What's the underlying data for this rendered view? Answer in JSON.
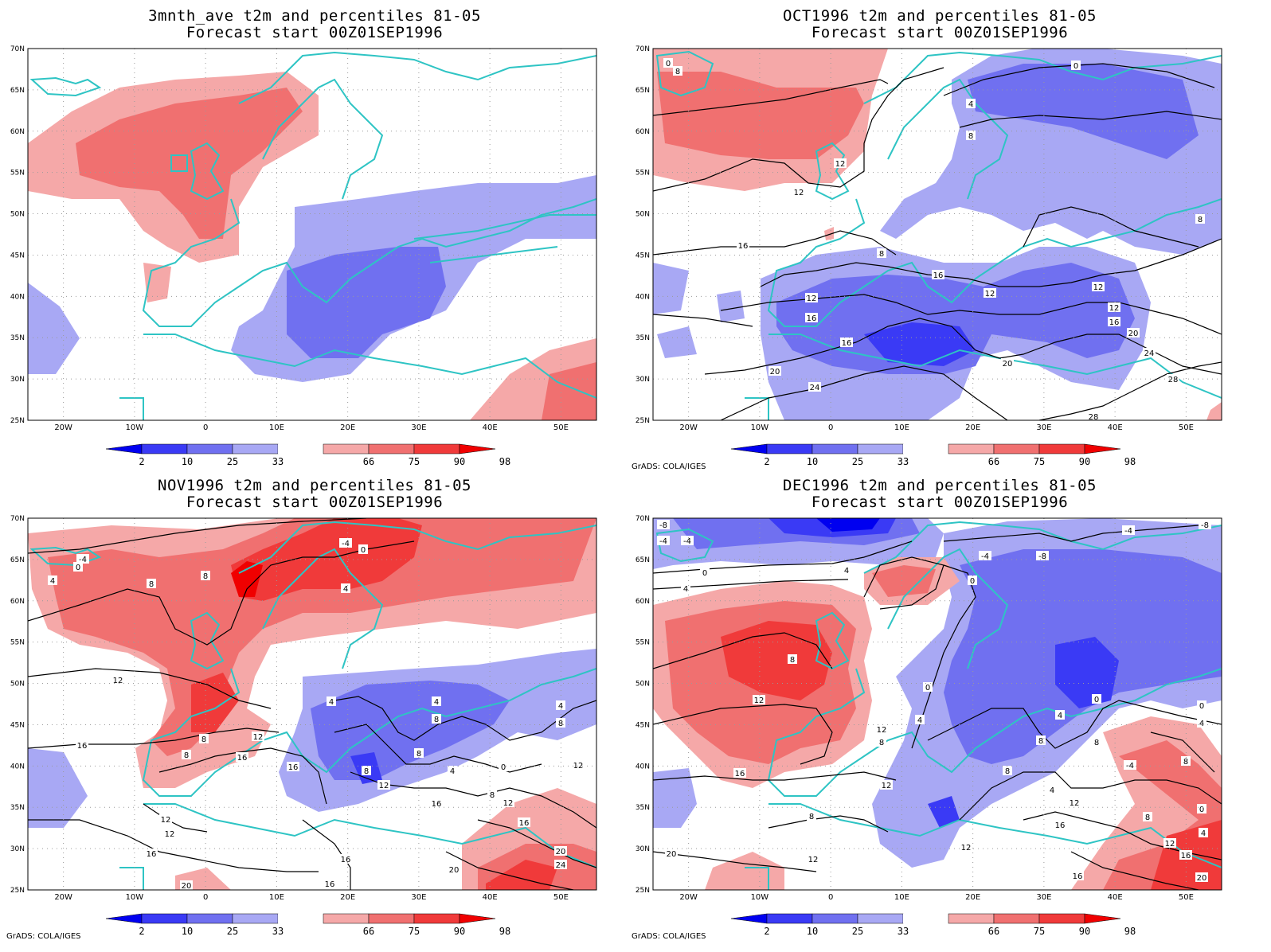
{
  "panels": [
    {
      "id": "p1",
      "title_line1": "3mnth_ave t2m and percentiles 81-05",
      "title_line2": "Forecast start 00Z01SEP1996",
      "credit": ""
    },
    {
      "id": "p2",
      "title_line1": "OCT1996 t2m and percentiles 81-05",
      "title_line2": "Forecast start 00Z01SEP1996",
      "credit": "GrADS: COLA/IGES"
    },
    {
      "id": "p3",
      "title_line1": "NOV1996 t2m and percentiles 81-05",
      "title_line2": "Forecast start 00Z01SEP1996",
      "credit": "GrADS: COLA/IGES"
    },
    {
      "id": "p4",
      "title_line1": "DEC1996 t2m and percentiles 81-05",
      "title_line2": "Forecast start 00Z01SEP1996",
      "credit": "GrADS: COLA/IGES"
    }
  ],
  "axes": {
    "lon_ticks": [
      "20W",
      "10W",
      "0",
      "10E",
      "20E",
      "30E",
      "40E",
      "50E"
    ],
    "lat_ticks": [
      "25N",
      "30N",
      "35N",
      "40N",
      "45N",
      "50N",
      "55N",
      "60N",
      "65N",
      "70N"
    ],
    "lon_range": [
      -25,
      55
    ],
    "lat_range": [
      25,
      70
    ]
  },
  "colorbar": {
    "labels": [
      "2",
      "10",
      "25",
      "33",
      "66",
      "75",
      "90",
      "98"
    ],
    "colors": [
      "#0000f0",
      "#3a3af5",
      "#7070f0",
      "#a8a8f4",
      "#ffffff",
      "#f5a8a8",
      "#f07070",
      "#f03a3a",
      "#f00000"
    ]
  },
  "colors": {
    "coast": "#2ec4c4",
    "contour": "#000000",
    "grid": "#9a9a9a"
  }
}
